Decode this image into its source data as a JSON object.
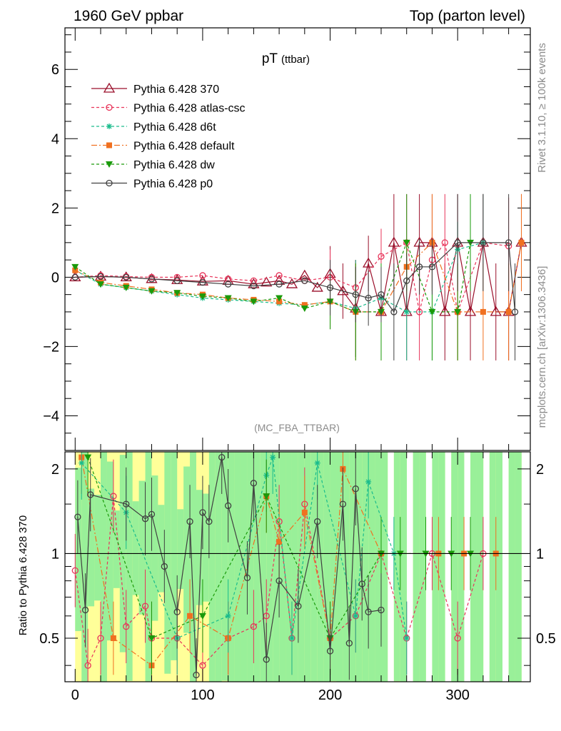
{
  "header": {
    "left": "1960 GeV ppbar",
    "right": "Top (parton level)"
  },
  "side_labels": {
    "rivet": "Rivet 3.1.10, ≥ 100k events",
    "mcplots": "mcplots.cern.ch [arXiv:1306.3436]"
  },
  "colors": {
    "p370": "#9a0f2a",
    "atlas": "#e8345a",
    "d6t": "#1abc8c",
    "def": "#f07020",
    "dw": "#1a9a0a",
    "p0": "#404040",
    "band_yellow": "#ffff99",
    "band_green": "#99f099"
  },
  "chart_data": [
    {
      "type": "line",
      "title": "pT",
      "title_sub": "(ttbar)",
      "analysis_tag": "(MC_FBA_TTBAR)",
      "xlabel": "",
      "ylabel": "",
      "xlim": [
        -8,
        357
      ],
      "ylim": [
        -5,
        7.2
      ],
      "yticks": [
        -4,
        -2,
        0,
        2,
        4,
        6
      ],
      "ytick_labels": [
        "−4",
        "−2",
        "0",
        "2",
        "4",
        "6"
      ],
      "legend_position": "top-left",
      "series": [
        {
          "name": "Pythia 6.428 370",
          "key": "p370",
          "marker": "triangle",
          "dash": "",
          "x": [
            0,
            20,
            40,
            60,
            80,
            100,
            120,
            140,
            150,
            160,
            170,
            180,
            190,
            200,
            210,
            220,
            230,
            240,
            250,
            260,
            270,
            280,
            290,
            300,
            310,
            320,
            330,
            340,
            350
          ],
          "y": [
            0,
            0.02,
            0.0,
            -0.05,
            -0.08,
            -0.12,
            -0.1,
            -0.2,
            -0.15,
            -0.1,
            -0.2,
            0.05,
            -0.3,
            0.1,
            -0.4,
            -0.9,
            0.4,
            -1,
            1,
            -1,
            1,
            1,
            -1,
            1,
            -1,
            1,
            -1,
            -1,
            1
          ]
        },
        {
          "name": "Pythia 6.428 atlas-csc",
          "key": "atlas",
          "marker": "circle",
          "dash": "4,3",
          "x": [
            0,
            20,
            40,
            60,
            80,
            100,
            120,
            140,
            160,
            180,
            200,
            220,
            240,
            260,
            270,
            280,
            290,
            300,
            320,
            340
          ],
          "y": [
            0,
            0.05,
            0.02,
            0.0,
            0.0,
            0.05,
            -0.05,
            -0.1,
            0.05,
            -0.1,
            0.0,
            -0.3,
            0.6,
            1,
            -1,
            0.5,
            1,
            -1,
            1,
            0.9
          ]
        },
        {
          "name": "Pythia 6.428 d6t",
          "key": "d6t",
          "marker": "star",
          "dash": "4,3",
          "x": [
            0,
            20,
            40,
            60,
            80,
            100,
            120,
            140,
            160,
            180,
            200,
            220,
            240,
            260,
            280,
            300,
            320
          ],
          "y": [
            0.2,
            -0.2,
            -0.3,
            -0.4,
            -0.5,
            -0.6,
            -0.65,
            -0.7,
            -0.75,
            -0.8,
            -0.7,
            -0.9,
            -0.6,
            -1,
            -1,
            0.8,
            1
          ]
        },
        {
          "name": "Pythia 6.428 default",
          "key": "def",
          "marker": "square",
          "dash": "8,3,2,3",
          "x": [
            0,
            20,
            40,
            60,
            80,
            100,
            120,
            140,
            160,
            180,
            200,
            220,
            240,
            260,
            280,
            300,
            320,
            340,
            350
          ],
          "y": [
            0.2,
            -0.15,
            -0.25,
            -0.35,
            -0.45,
            -0.5,
            -0.6,
            -0.65,
            -0.7,
            -0.8,
            -0.7,
            -1,
            -1,
            0.3,
            1,
            -1,
            -1,
            -1,
            1
          ]
        },
        {
          "name": "Pythia 6.428 dw",
          "key": "dw",
          "marker": "tridown",
          "dash": "4,3",
          "x": [
            0,
            20,
            40,
            60,
            80,
            100,
            120,
            140,
            160,
            180,
            200,
            220,
            240,
            260,
            280,
            300,
            310
          ],
          "y": [
            0.3,
            -0.2,
            -0.3,
            -0.4,
            -0.45,
            -0.55,
            -0.6,
            -0.7,
            -0.6,
            -0.9,
            -0.7,
            -1,
            -1,
            1,
            -1,
            -1,
            1
          ]
        },
        {
          "name": "Pythia 6.428 p0",
          "key": "p0",
          "marker": "circle",
          "dash": "",
          "x": [
            0,
            20,
            40,
            60,
            80,
            100,
            120,
            140,
            160,
            180,
            200,
            220,
            230,
            240,
            250,
            260,
            270,
            280,
            300,
            320,
            340,
            345
          ],
          "y": [
            0,
            0.02,
            0.0,
            -0.05,
            -0.1,
            -0.15,
            -0.2,
            -0.25,
            -0.2,
            -0.1,
            -0.3,
            -0.5,
            -0.6,
            -0.5,
            -1,
            -0.1,
            0.3,
            0.3,
            1,
            1,
            1,
            -1
          ]
        }
      ]
    },
    {
      "type": "line",
      "title": "",
      "xlabel": "",
      "ylabel": "Ratio to Pythia 6.428 370",
      "xlim": [
        -8,
        357
      ],
      "ylim": [
        0.35,
        2.3
      ],
      "yticks": [
        0.5,
        1,
        2
      ],
      "ytick_labels": [
        "0.5",
        "1",
        "2"
      ],
      "xticks": [
        0,
        100,
        200,
        300
      ],
      "xtick_labels": [
        "0",
        "100",
        "200",
        "300"
      ],
      "reference_line": 1,
      "series": [
        {
          "name": "Pythia 6.428 atlas-csc",
          "key": "atlas",
          "x": [
            0,
            10,
            20,
            30,
            40,
            55,
            60,
            80,
            100,
            120,
            140,
            150,
            160,
            170,
            180,
            200,
            220,
            240,
            260,
            280,
            300,
            320
          ],
          "y": [
            0.87,
            0.4,
            0.5,
            1.6,
            0.55,
            0.65,
            0.5,
            0.5,
            0.4,
            0.5,
            0.55,
            0.6,
            1.3,
            0.5,
            1.5,
            0.5,
            0.6,
            1,
            0.5,
            1,
            0.5,
            1
          ]
        },
        {
          "name": "Pythia 6.428 default",
          "key": "def",
          "x": [
            5,
            30,
            60,
            90,
            120,
            150,
            160,
            180,
            200,
            210,
            240,
            285,
            305,
            330
          ],
          "y": [
            2.2,
            0.5,
            0.4,
            0.6,
            0.5,
            1.6,
            1.1,
            1.4,
            0.5,
            2,
            1,
            1,
            1,
            1
          ]
        },
        {
          "name": "Pythia 6.428 d6t",
          "key": "d6t",
          "x": [
            5,
            40,
            80,
            120,
            150,
            155,
            170,
            190,
            220,
            230,
            250,
            260
          ],
          "y": [
            2.1,
            1.4,
            0.5,
            0.6,
            1.9,
            2.2,
            0.5,
            2.1,
            0.6,
            1.8,
            1,
            0.5
          ]
        },
        {
          "name": "Pythia 6.428 dw",
          "key": "dw",
          "x": [
            10,
            60,
            100,
            150,
            200,
            240,
            255,
            275,
            295,
            310
          ],
          "y": [
            2.2,
            0.5,
            0.6,
            1.6,
            0.5,
            1,
            1,
            1,
            1,
            1
          ]
        },
        {
          "name": "Pythia 6.428 p0",
          "key": "p0",
          "x": [
            2,
            8,
            12,
            40,
            55,
            60,
            70,
            80,
            90,
            95,
            100,
            105,
            115,
            120,
            135,
            140,
            150,
            160,
            175,
            190,
            200,
            210,
            215,
            220,
            225,
            230,
            240
          ],
          "y": [
            1.35,
            0.63,
            1.62,
            1.5,
            1.33,
            1.38,
            0.9,
            0.62,
            1.3,
            0.37,
            1.4,
            1.3,
            2.2,
            1.48,
            0.82,
            1.78,
            0.42,
            0.8,
            0.65,
            1.3,
            0.45,
            1.5,
            0.48,
            1.7,
            0.78,
            0.62,
            0.63
          ]
        }
      ]
    }
  ]
}
